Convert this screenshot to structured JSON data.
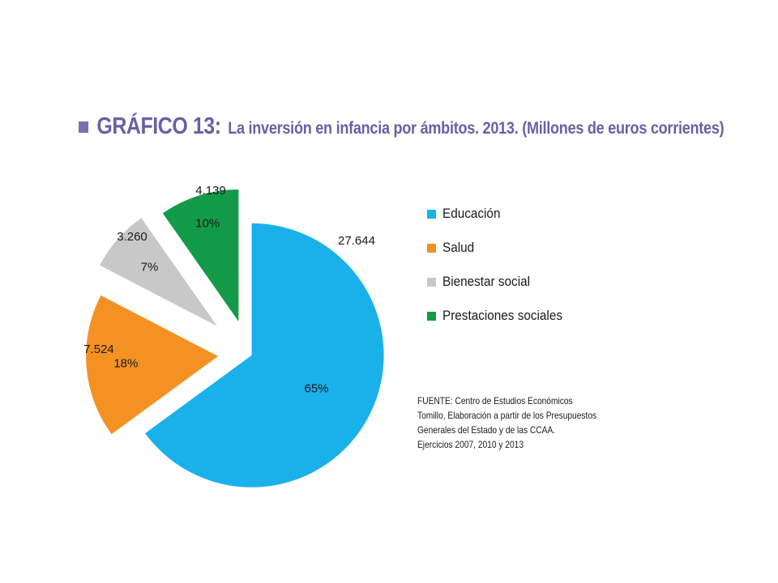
{
  "header": {
    "label": "GRÁFICO 13:",
    "text": "La inversión en infancia por ámbitos. 2013. (Millones de euros corrientes)"
  },
  "colors": {
    "title": "#6a5fa6",
    "educacion": "#1ab1ea",
    "salud": "#f39223",
    "bienestar": "#c8c8c8",
    "prestaciones": "#139a48"
  },
  "chart_data": {
    "type": "pie",
    "title": "La inversión en infancia por ámbitos. 2013. (Millones de euros corrientes)",
    "slices": [
      {
        "name": "Educación",
        "value": 27644,
        "value_label": "27.644",
        "percent_label": "65%",
        "color": "#1ab1ea"
      },
      {
        "name": "Salud",
        "value": 7524,
        "value_label": "7.524",
        "percent_label": "18%",
        "color": "#f39223"
      },
      {
        "name": "Bienestar social",
        "value": 3260,
        "value_label": "3.260",
        "percent_label": "7%",
        "color": "#c8c8c8"
      },
      {
        "name": "Prestaciones sociales",
        "value": 4139,
        "value_label": "4.139",
        "percent_label": "10%",
        "color": "#139a48"
      }
    ],
    "exploded": true,
    "legend_position": "right"
  },
  "legend": {
    "items": [
      {
        "label": "Educación",
        "color": "#1ab1ea"
      },
      {
        "label": "Salud",
        "color": "#f39223"
      },
      {
        "label": "Bienestar social",
        "color": "#c8c8c8"
      },
      {
        "label": "Prestaciones sociales",
        "color": "#139a48"
      }
    ]
  },
  "source": {
    "lines": [
      "FUENTE: Centro de Estudios Económicos",
      "Tomillo, Elaboración a partir de los Presupuestos",
      "Generales del Estado y de las CCAA.",
      "Ejercicios 2007, 2010 y 2013"
    ]
  }
}
